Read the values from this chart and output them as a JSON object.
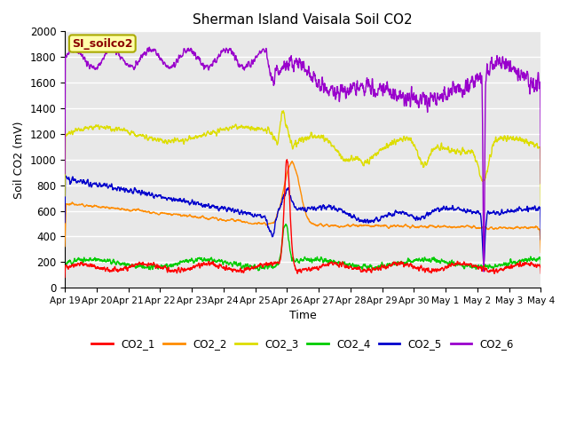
{
  "title": "Sherman Island Vaisala Soil CO2",
  "ylabel": "Soil CO2 (mV)",
  "xlabel": "Time",
  "ylim": [
    0,
    2000
  ],
  "fig_bg_color": "#ffffff",
  "plot_bg_color": "#e8e8e8",
  "legend_label": "SI_soilco2",
  "series_colors": {
    "CO2_1": "#ff0000",
    "CO2_2": "#ff8c00",
    "CO2_3": "#dddd00",
    "CO2_4": "#00cc00",
    "CO2_5": "#0000cc",
    "CO2_6": "#9900cc"
  },
  "x_tick_labels": [
    "Apr 19",
    "Apr 20",
    "Apr 21",
    "Apr 22",
    "Apr 23",
    "Apr 24",
    "Apr 25",
    "Apr 26",
    "Apr 27",
    "Apr 28",
    "Apr 29",
    "Apr 30",
    "May 1",
    "May 2",
    "May 3",
    "May 4"
  ],
  "yticks": [
    0,
    200,
    400,
    600,
    800,
    1000,
    1200,
    1400,
    1600,
    1800,
    2000
  ],
  "num_days": 15
}
